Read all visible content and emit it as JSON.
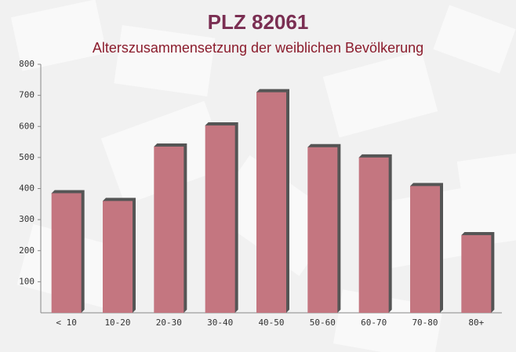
{
  "chart_data": {
    "type": "bar",
    "title": "PLZ 82061",
    "subtitle": "Alterszusammensetzung der weiblichen Bevölkerung",
    "categories": [
      "< 10",
      "10-20",
      "20-30",
      "30-40",
      "40-50",
      "50-60",
      "60-70",
      "70-80",
      "80+"
    ],
    "values": [
      385,
      360,
      535,
      603,
      710,
      533,
      500,
      408,
      250
    ],
    "color": "#c47680",
    "ylim": [
      0,
      800
    ],
    "yticks": [
      100,
      200,
      300,
      400,
      500,
      600,
      700,
      800
    ]
  }
}
